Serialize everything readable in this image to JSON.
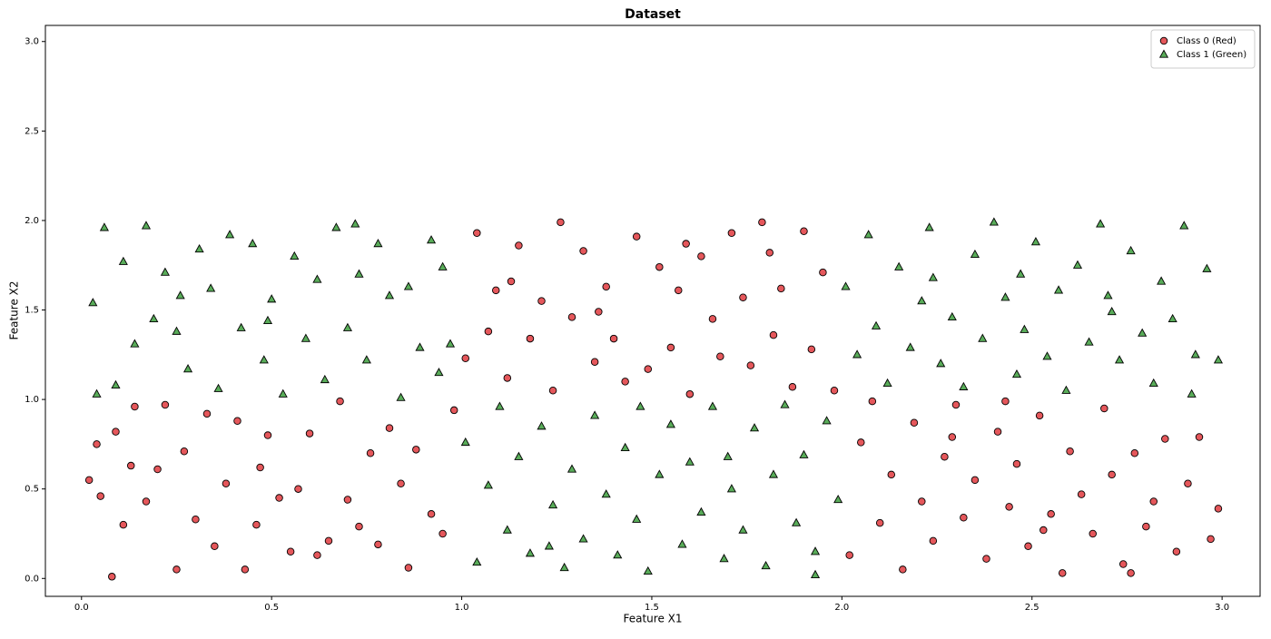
{
  "chart_data": {
    "type": "scatter",
    "title": "Dataset",
    "x_label": "Feature X1",
    "y_label": "Feature X2",
    "xlim": [
      -0.095,
      3.1
    ],
    "ylim": [
      -0.1,
      3.09
    ],
    "xticks": [
      {
        "value": 0,
        "label": "0.0"
      },
      0.5,
      {
        "value": 1,
        "label": "1.0"
      },
      1.5,
      {
        "value": 2,
        "label": "2.0"
      },
      2.5,
      {
        "value": 3,
        "label": "3.0"
      }
    ],
    "yticks": [
      {
        "value": 0,
        "label": "0.0"
      },
      0.5,
      {
        "value": 1,
        "label": "1.0"
      },
      1.5,
      {
        "value": 2,
        "label": "2.0"
      },
      2.5,
      {
        "value": 3,
        "label": "3.0"
      }
    ],
    "grid": false,
    "legend": "upper right",
    "series": [
      {
        "name": "Class 0 (Red)",
        "color": "#e0393e",
        "marker": "circle",
        "x": [
          0.02,
          0.05,
          0.08,
          0.09,
          0.11,
          0.14,
          0.17,
          0.2,
          0.22,
          0.25,
          0.27,
          0.3,
          0.33,
          0.35,
          0.38,
          0.41,
          0.43,
          0.46,
          0.49,
          0.52,
          0.55,
          0.57,
          0.6,
          0.62,
          0.65,
          0.68,
          0.7,
          0.73,
          0.76,
          0.78,
          0.81,
          0.84,
          0.86,
          0.88,
          0.92,
          0.95,
          0.98,
          0.04,
          0.13,
          0.47,
          1.01,
          1.04,
          1.07,
          1.09,
          1.12,
          1.15,
          1.18,
          1.21,
          1.24,
          1.26,
          1.29,
          1.32,
          1.35,
          1.38,
          1.4,
          1.43,
          1.46,
          1.49,
          1.52,
          1.55,
          1.57,
          1.6,
          1.63,
          1.66,
          1.68,
          1.71,
          1.74,
          1.76,
          1.79,
          1.82,
          1.84,
          1.87,
          1.9,
          1.92,
          1.95,
          1.98,
          1.13,
          1.36,
          1.59,
          1.81,
          2.02,
          2.05,
          2.08,
          2.1,
          2.13,
          2.16,
          2.19,
          2.21,
          2.24,
          2.27,
          2.3,
          2.32,
          2.35,
          2.38,
          2.41,
          2.44,
          2.46,
          2.49,
          2.52,
          2.55,
          2.58,
          2.6,
          2.63,
          2.66,
          2.69,
          2.71,
          2.74,
          2.77,
          2.8,
          2.82,
          2.85,
          2.88,
          2.91,
          2.94,
          2.97,
          2.99,
          2.29,
          2.53,
          2.76,
          2.43
        ],
        "y": [
          0.55,
          0.46,
          0.01,
          0.82,
          0.3,
          0.96,
          0.43,
          0.61,
          0.97,
          0.05,
          0.71,
          0.33,
          0.92,
          0.18,
          0.53,
          0.88,
          0.05,
          0.3,
          0.8,
          0.45,
          0.15,
          0.5,
          0.81,
          0.13,
          0.21,
          0.99,
          0.44,
          0.29,
          0.7,
          0.19,
          0.84,
          0.53,
          0.06,
          0.72,
          0.36,
          0.25,
          0.94,
          0.75,
          0.63,
          0.62,
          1.23,
          1.93,
          1.38,
          1.61,
          1.12,
          1.86,
          1.34,
          1.55,
          1.05,
          1.99,
          1.46,
          1.83,
          1.21,
          1.63,
          1.34,
          1.1,
          1.91,
          1.17,
          1.74,
          1.29,
          1.61,
          1.03,
          1.8,
          1.45,
          1.24,
          1.93,
          1.57,
          1.19,
          1.99,
          1.36,
          1.62,
          1.07,
          1.94,
          1.28,
          1.71,
          1.05,
          1.66,
          1.49,
          1.87,
          1.82,
          0.13,
          0.76,
          0.99,
          0.31,
          0.58,
          0.05,
          0.87,
          0.43,
          0.21,
          0.68,
          0.97,
          0.34,
          0.55,
          0.11,
          0.82,
          0.4,
          0.64,
          0.18,
          0.91,
          0.36,
          0.03,
          0.71,
          0.47,
          0.25,
          0.95,
          0.58,
          0.08,
          0.7,
          0.29,
          0.43,
          0.78,
          0.15,
          0.53,
          0.79,
          0.22,
          0.39,
          0.79,
          0.27,
          0.03,
          0.99
        ]
      },
      {
        "name": "Class 1 (Green)",
        "color": "#3c9e3c",
        "marker": "triangle",
        "x": [
          0.03,
          0.06,
          0.09,
          0.11,
          0.14,
          0.17,
          0.19,
          0.22,
          0.25,
          0.28,
          0.31,
          0.34,
          0.36,
          0.39,
          0.42,
          0.45,
          0.48,
          0.5,
          0.53,
          0.56,
          0.59,
          0.62,
          0.64,
          0.67,
          0.7,
          0.73,
          0.75,
          0.78,
          0.81,
          0.84,
          0.86,
          0.89,
          0.92,
          0.95,
          0.97,
          0.04,
          0.26,
          0.49,
          0.72,
          0.94,
          1.01,
          1.04,
          1.07,
          1.1,
          1.12,
          1.15,
          1.18,
          1.21,
          1.24,
          1.27,
          1.29,
          1.32,
          1.35,
          1.38,
          1.41,
          1.43,
          1.46,
          1.49,
          1.52,
          1.55,
          1.58,
          1.6,
          1.63,
          1.66,
          1.69,
          1.71,
          1.74,
          1.77,
          1.8,
          1.82,
          1.85,
          1.88,
          1.9,
          1.93,
          1.96,
          1.99,
          1.23,
          1.47,
          1.7,
          1.93,
          2.01,
          2.04,
          2.07,
          2.09,
          2.12,
          2.15,
          2.18,
          2.21,
          2.23,
          2.26,
          2.29,
          2.32,
          2.35,
          2.37,
          2.4,
          2.43,
          2.46,
          2.48,
          2.51,
          2.54,
          2.57,
          2.59,
          2.62,
          2.65,
          2.68,
          2.71,
          2.73,
          2.76,
          2.79,
          2.82,
          2.84,
          2.87,
          2.9,
          2.93,
          2.96,
          2.99,
          2.24,
          2.47,
          2.7,
          2.92
        ],
        "y": [
          1.54,
          1.96,
          1.08,
          1.77,
          1.31,
          1.97,
          1.45,
          1.71,
          1.38,
          1.17,
          1.84,
          1.62,
          1.06,
          1.92,
          1.4,
          1.87,
          1.22,
          1.56,
          1.03,
          1.8,
          1.34,
          1.67,
          1.11,
          1.96,
          1.4,
          1.7,
          1.22,
          1.87,
          1.58,
          1.01,
          1.63,
          1.29,
          1.89,
          1.74,
          1.31,
          1.03,
          1.58,
          1.44,
          1.98,
          1.15,
          0.76,
          0.09,
          0.52,
          0.96,
          0.27,
          0.68,
          0.14,
          0.85,
          0.41,
          0.06,
          0.61,
          0.22,
          0.91,
          0.47,
          0.13,
          0.73,
          0.33,
          0.04,
          0.58,
          0.86,
          0.19,
          0.65,
          0.37,
          0.96,
          0.11,
          0.5,
          0.27,
          0.84,
          0.07,
          0.58,
          0.97,
          0.31,
          0.69,
          0.15,
          0.88,
          0.44,
          0.18,
          0.96,
          0.68,
          0.02,
          1.63,
          1.25,
          1.92,
          1.41,
          1.09,
          1.74,
          1.29,
          1.55,
          1.96,
          1.2,
          1.46,
          1.07,
          1.81,
          1.34,
          1.99,
          1.57,
          1.14,
          1.39,
          1.88,
          1.24,
          1.61,
          1.05,
          1.75,
          1.32,
          1.98,
          1.49,
          1.22,
          1.83,
          1.37,
          1.09,
          1.66,
          1.45,
          1.97,
          1.25,
          1.73,
          1.22,
          1.68,
          1.7,
          1.58,
          1.03
        ]
      }
    ]
  }
}
